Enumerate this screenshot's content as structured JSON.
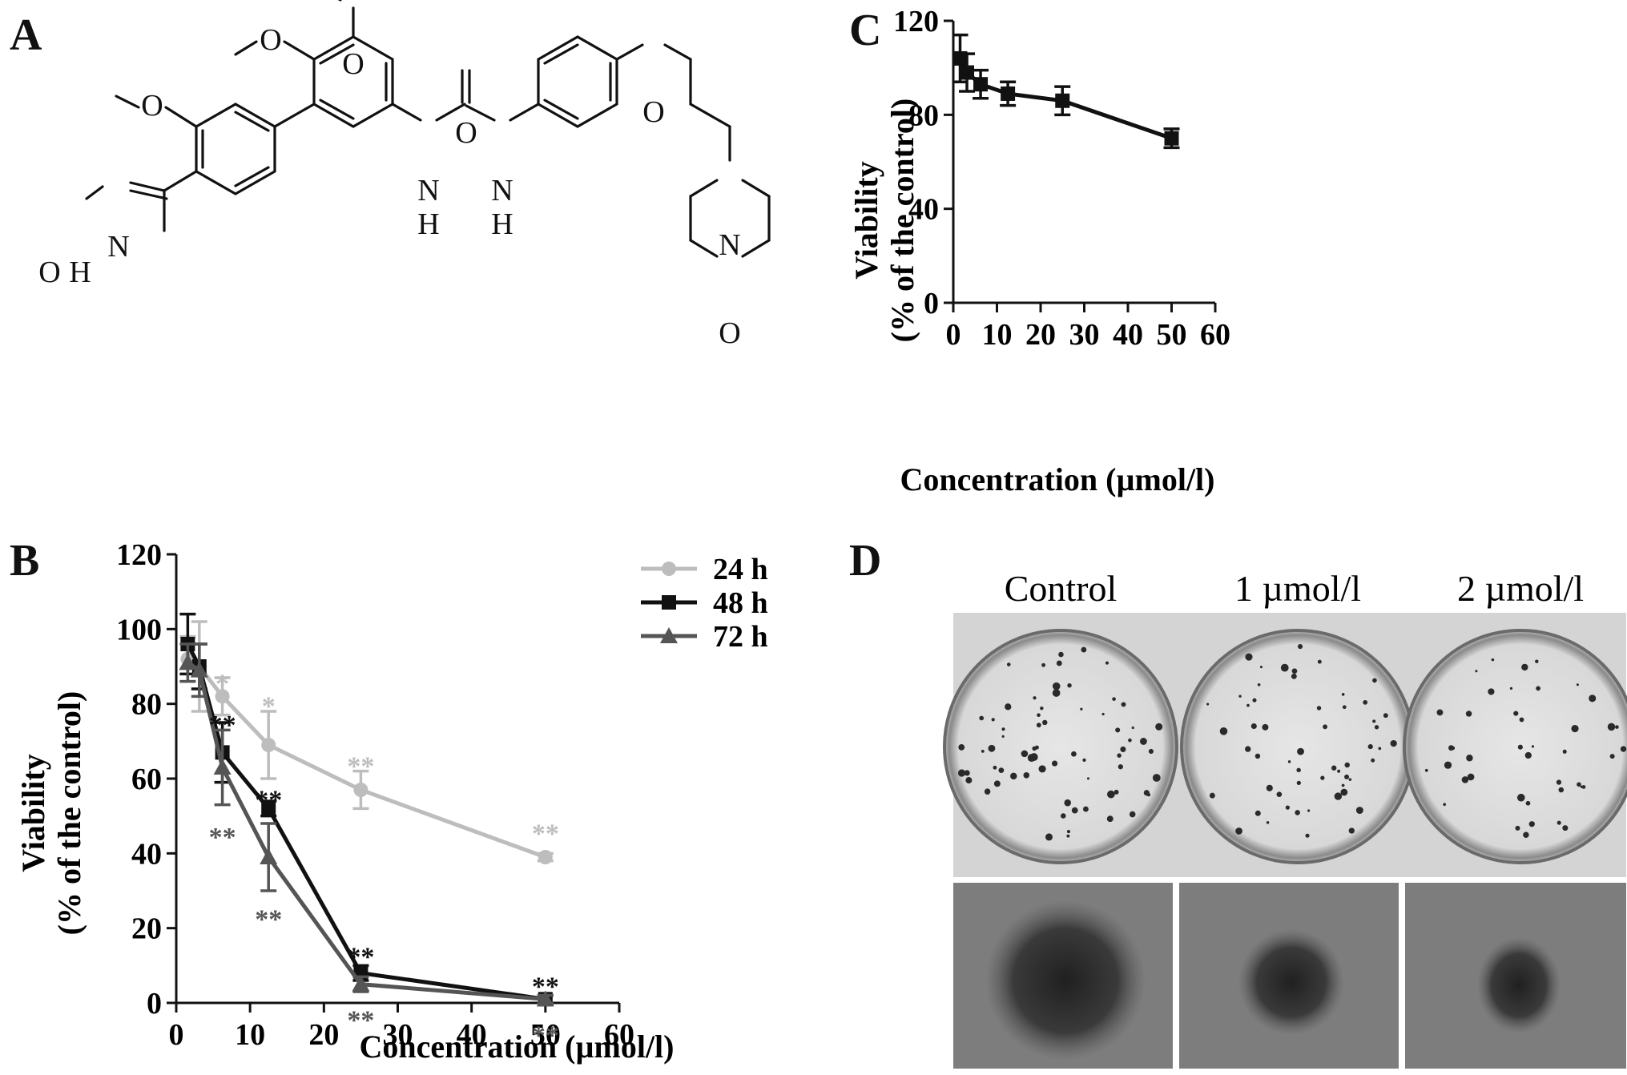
{
  "panels": {
    "a": "A",
    "b": "B",
    "c": "C",
    "d": "D"
  },
  "molecule": {
    "atoms": [
      "O",
      "O",
      "O",
      "O",
      "H",
      "N",
      "N",
      "H",
      "N",
      "H",
      "O",
      "O",
      "N",
      "O"
    ]
  },
  "chart_b": {
    "type": "line",
    "xlabel": "Concentration (µmol/l)",
    "ylabel": "Viability",
    "ylabel2": "(% of the control)",
    "xticks": [
      "0",
      "10",
      "20",
      "30",
      "40",
      "50",
      "60"
    ],
    "yticks": [
      "0",
      "20",
      "40",
      "60",
      "80",
      "100",
      "120"
    ],
    "xlim": [
      0,
      60
    ],
    "ylim": [
      0,
      120
    ],
    "legend_position": "top-right",
    "series": [
      {
        "name": "24 h",
        "color": "#bdbdbd",
        "marker": "circle",
        "x": [
          1.56,
          3.125,
          6.25,
          12.5,
          25,
          50
        ],
        "y": [
          92,
          90,
          82,
          69,
          57,
          39
        ],
        "err": [
          6,
          12,
          5,
          9,
          5,
          1
        ]
      },
      {
        "name": "48 h",
        "color": "#111111",
        "marker": "square",
        "x": [
          1.56,
          3.125,
          6.25,
          12.5,
          25,
          50
        ],
        "y": [
          96,
          90,
          67,
          52,
          8,
          1
        ],
        "err": [
          8,
          6,
          8,
          2,
          2,
          1
        ]
      },
      {
        "name": "72 h",
        "color": "#555555",
        "marker": "triangle",
        "x": [
          1.56,
          3.125,
          6.25,
          12.5,
          25,
          50
        ],
        "y": [
          91,
          89,
          63,
          39,
          5,
          1
        ],
        "err": [
          5,
          7,
          10,
          9,
          2,
          1
        ]
      }
    ],
    "annotations": [
      {
        "text": "*",
        "x": 6.25,
        "y": 86,
        "color": "#bdbdbd"
      },
      {
        "text": "*",
        "x": 12.5,
        "y": 80,
        "color": "#bdbdbd"
      },
      {
        "text": "**",
        "x": 25,
        "y": 64,
        "color": "#bdbdbd"
      },
      {
        "text": "**",
        "x": 50,
        "y": 46,
        "color": "#bdbdbd"
      },
      {
        "text": "**",
        "x": 6.25,
        "y": 75,
        "color": "#111111"
      },
      {
        "text": "**",
        "x": 12.5,
        "y": 55,
        "color": "#111111"
      },
      {
        "text": "**",
        "x": 25,
        "y": 13,
        "color": "#111111"
      },
      {
        "text": "**",
        "x": 50,
        "y": 5,
        "color": "#111111"
      },
      {
        "text": "**",
        "x": 6.25,
        "y": 45,
        "color": "#555555"
      },
      {
        "text": "**",
        "x": 12.5,
        "y": 23,
        "color": "#555555"
      },
      {
        "text": "**",
        "x": 25,
        "y": -4,
        "color": "#555555"
      },
      {
        "text": "**",
        "x": 50,
        "y": -8,
        "color": "#555555"
      }
    ]
  },
  "chart_c": {
    "type": "line",
    "xlabel": "Concentration (µmol/l)",
    "ylabel": "Viability",
    "ylabel2": "(% of the control)",
    "xticks": [
      "0",
      "10",
      "20",
      "30",
      "40",
      "50",
      "60"
    ],
    "yticks": [
      "0",
      "40",
      "80",
      "120"
    ],
    "xlim": [
      0,
      60
    ],
    "ylim": [
      0,
      120
    ],
    "series": [
      {
        "color": "#111111",
        "marker": "square",
        "x": [
          1.56,
          3.125,
          6.25,
          12.5,
          25,
          50
        ],
        "y": [
          104,
          98,
          93,
          89,
          86,
          70
        ],
        "err": [
          10,
          8,
          6,
          5,
          6,
          4
        ]
      }
    ]
  },
  "panel_d": {
    "labels": [
      "Control",
      "1 µmol/l",
      "2 µmol/l"
    ]
  }
}
